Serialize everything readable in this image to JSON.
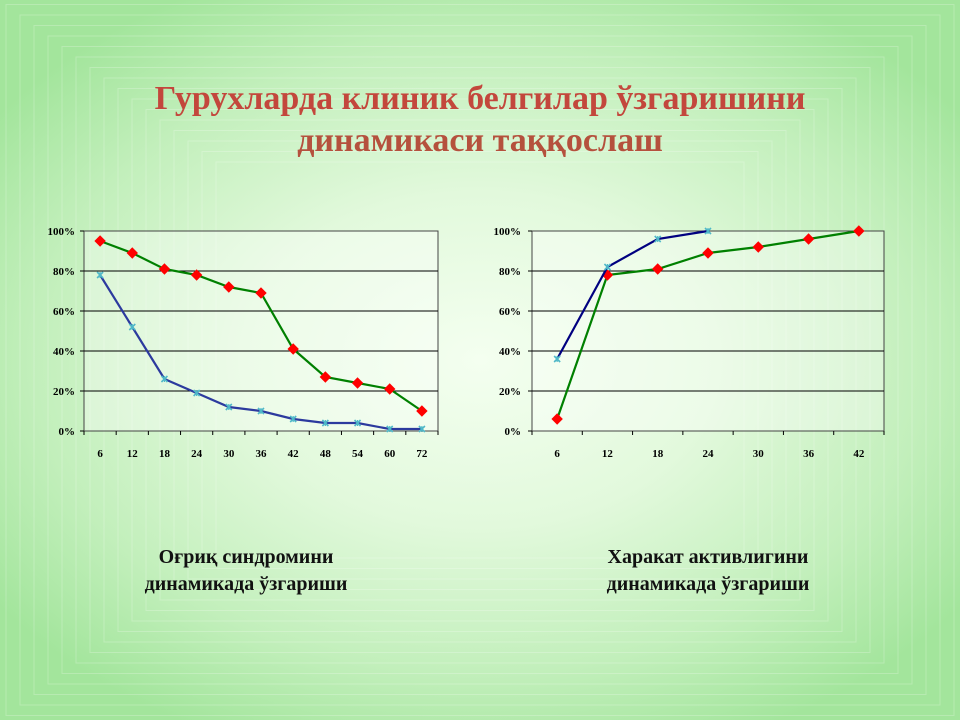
{
  "slide": {
    "title_line1": "Гурухларда клиник белгилар ўзгаришини",
    "title_line2": "динамикаси таққослаш",
    "title_color": "#c0504d"
  },
  "captions": {
    "left_line1": "Оғриқ синдромини",
    "left_line2": "динамикада ўзгариши",
    "right_line1": "Харакат активлигини",
    "right_line2": "динамикада ўзгариши"
  },
  "chart_data": [
    {
      "type": "line",
      "categories": [
        "6",
        "12",
        "18",
        "24",
        "30",
        "36",
        "42",
        "48",
        "54",
        "60",
        "72"
      ],
      "y_ticks": [
        "0%",
        "20%",
        "40%",
        "60%",
        "80%",
        "100%"
      ],
      "ylim": [
        0,
        100
      ],
      "grid": true,
      "legend": "none",
      "series": [
        {
          "color": "#008000",
          "marker": "diamond",
          "marker_color": "#ff0000",
          "values": [
            95,
            89,
            81,
            78,
            72,
            69,
            41,
            27,
            24,
            21,
            10
          ]
        },
        {
          "color": "#2c3a9e",
          "marker": "star",
          "marker_color": "#4fb8c8",
          "values": [
            78,
            52,
            26,
            19,
            12,
            10,
            6,
            4,
            4,
            1,
            1
          ]
        }
      ]
    },
    {
      "type": "line",
      "categories": [
        "6",
        "12",
        "18",
        "24",
        "30",
        "36",
        "42"
      ],
      "y_ticks": [
        "0%",
        "20%",
        "40%",
        "60%",
        "80%",
        "100%"
      ],
      "ylim": [
        0,
        100
      ],
      "grid": true,
      "legend": "none",
      "series": [
        {
          "color": "#008000",
          "marker": "diamond",
          "marker_color": "#ff0000",
          "values": [
            6,
            78,
            81,
            89,
            92,
            96,
            100
          ]
        },
        {
          "color": "#000080",
          "marker": "star",
          "marker_color": "#4fb8c8",
          "values": [
            36,
            82,
            96,
            100,
            null,
            null,
            null
          ]
        }
      ]
    }
  ]
}
